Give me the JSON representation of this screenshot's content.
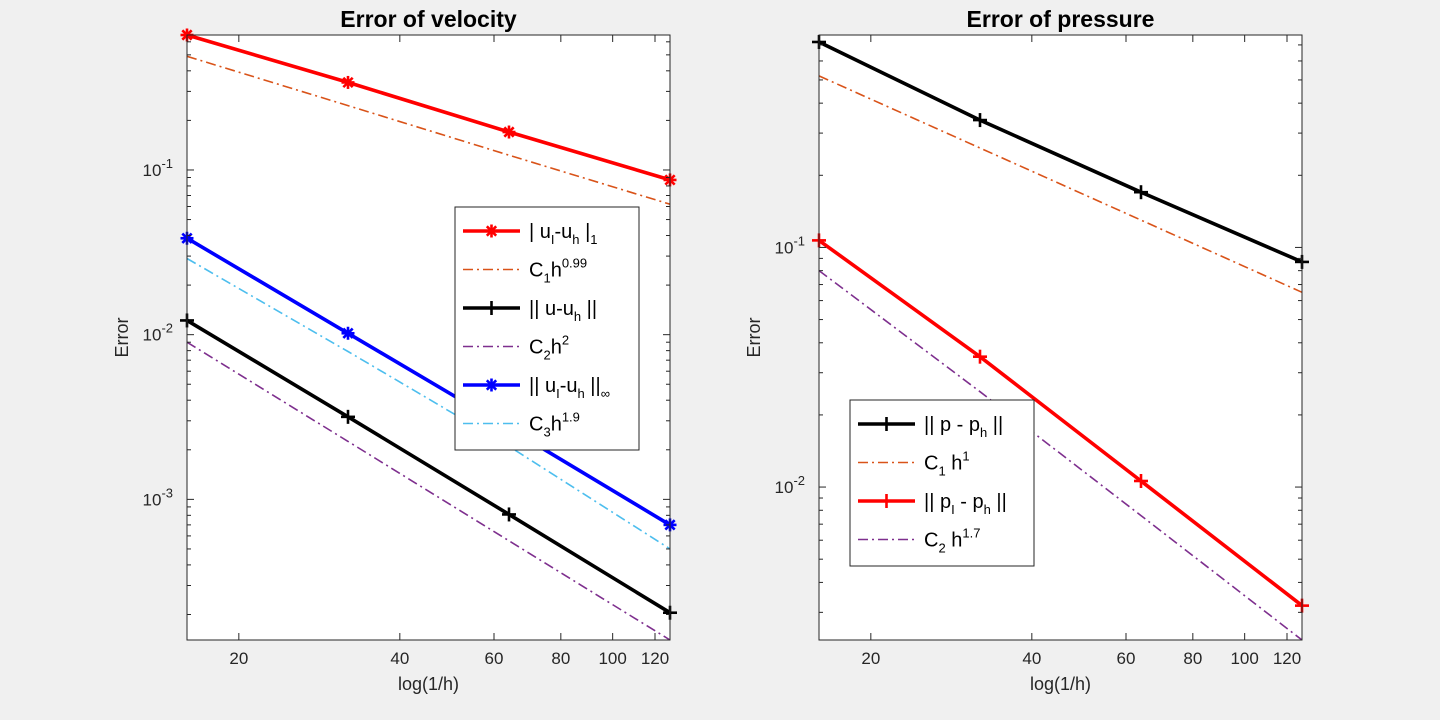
{
  "chart_data": [
    {
      "type": "line",
      "title": "Error of velocity",
      "xlabel": "log(1/h)",
      "ylabel": "Error",
      "xscale": "log",
      "yscale": "log",
      "x": [
        16,
        32,
        64,
        128
      ],
      "xlim": [
        16,
        128
      ],
      "ylim": [
        0.00014,
        0.66
      ],
      "xticks": [
        20,
        40,
        60,
        80,
        100,
        120
      ],
      "yticks": [
        0.001,
        0.01,
        0.1
      ],
      "grid": false,
      "legend_position": "center-right",
      "series": [
        {
          "name": "| u_I-u_h |_1",
          "legend_parts": [
            [
              "| u",
              "n"
            ],
            [
              "I",
              "sub"
            ],
            [
              "-u",
              "n"
            ],
            [
              "h",
              "sub"
            ],
            [
              " |",
              "n"
            ],
            [
              "1",
              "sub"
            ]
          ],
          "values": [
            0.66,
            0.34,
            0.17,
            0.087
          ],
          "color": "#ff0000",
          "style": "solid",
          "marker": "asterisk"
        },
        {
          "name": "C_1h^0.99",
          "legend_parts": [
            [
              "C",
              "n"
            ],
            [
              "1",
              "sub"
            ],
            [
              "h",
              "n"
            ],
            [
              "0.99",
              "sup"
            ]
          ],
          "values": [
            0.49,
            0.246,
            0.123,
            0.062
          ],
          "color": "#d95319",
          "style": "dashdot",
          "marker": "none"
        },
        {
          "name": "|| u-u_h ||",
          "legend_parts": [
            [
              "|| u-u",
              "n"
            ],
            [
              "h",
              "sub"
            ],
            [
              " ||",
              "n"
            ]
          ],
          "values": [
            0.0122,
            0.00317,
            0.00081,
            0.000205
          ],
          "color": "#000000",
          "style": "solid",
          "marker": "plus"
        },
        {
          "name": "C_2h^2",
          "legend_parts": [
            [
              "C",
              "n"
            ],
            [
              "2",
              "sub"
            ],
            [
              "h",
              "n"
            ],
            [
              "2",
              "sup"
            ]
          ],
          "values": [
            0.009,
            0.00225,
            0.00056,
            0.00014
          ],
          "color": "#7e2f8e",
          "style": "dashdot",
          "marker": "none"
        },
        {
          "name": "|| u_I-u_h ||_∞",
          "legend_parts": [
            [
              "|| u",
              "n"
            ],
            [
              "I",
              "sub"
            ],
            [
              "-u",
              "n"
            ],
            [
              "h",
              "sub"
            ],
            [
              " ||",
              "n"
            ],
            [
              "∞",
              "sub"
            ]
          ],
          "values": [
            0.0385,
            0.0102,
            0.0027,
            0.0007
          ],
          "color": "#0000ff",
          "style": "solid",
          "marker": "asterisk"
        },
        {
          "name": "C_3h^1.9",
          "legend_parts": [
            [
              "C",
              "n"
            ],
            [
              "3",
              "sub"
            ],
            [
              "h",
              "n"
            ],
            [
              "1.9",
              "sup"
            ]
          ],
          "values": [
            0.029,
            0.0079,
            0.0021,
            0.0005
          ],
          "color": "#4dbeee",
          "style": "dashdot",
          "marker": "none"
        }
      ]
    },
    {
      "type": "line",
      "title": "Error of pressure",
      "xlabel": "log(1/h)",
      "ylabel": "Error",
      "xscale": "log",
      "yscale": "log",
      "x": [
        16,
        32,
        64,
        128
      ],
      "xlim": [
        16,
        128
      ],
      "ylim": [
        0.0023,
        0.77
      ],
      "xticks": [
        20,
        40,
        60,
        80,
        100,
        120
      ],
      "yticks": [
        0.01,
        0.1
      ],
      "grid": false,
      "legend_position": "bottom-left",
      "series": [
        {
          "name": "|| p - p_h ||",
          "legend_parts": [
            [
              "|| p - p",
              "n"
            ],
            [
              "h",
              "sub"
            ],
            [
              " ||",
              "n"
            ]
          ],
          "values": [
            0.72,
            0.34,
            0.17,
            0.087
          ],
          "color": "#000000",
          "style": "solid",
          "marker": "plus"
        },
        {
          "name": "C_1 h^1",
          "legend_parts": [
            [
              "C",
              "n"
            ],
            [
              "1",
              "sub"
            ],
            [
              " h",
              "n"
            ],
            [
              "1",
              "sup"
            ]
          ],
          "values": [
            0.52,
            0.26,
            0.13,
            0.065
          ],
          "color": "#d95319",
          "style": "dashdot",
          "marker": "none"
        },
        {
          "name": "|| p_I - p_h ||",
          "legend_parts": [
            [
              "|| p",
              "n"
            ],
            [
              "I",
              "sub"
            ],
            [
              " - p",
              "n"
            ],
            [
              "h",
              "sub"
            ],
            [
              " ||",
              "n"
            ]
          ],
          "values": [
            0.107,
            0.035,
            0.0106,
            0.0032
          ],
          "color": "#ff0000",
          "style": "solid",
          "marker": "plus"
        },
        {
          "name": "C_2 h^1.7",
          "legend_parts": [
            [
              "C",
              "n"
            ],
            [
              "2",
              "sub"
            ],
            [
              " h",
              "n"
            ],
            [
              "1.7",
              "sup"
            ]
          ],
          "values": [
            0.08,
            0.025,
            0.0076,
            0.0023
          ],
          "color": "#7e2f8e",
          "style": "dashdot",
          "marker": "none"
        }
      ]
    }
  ]
}
